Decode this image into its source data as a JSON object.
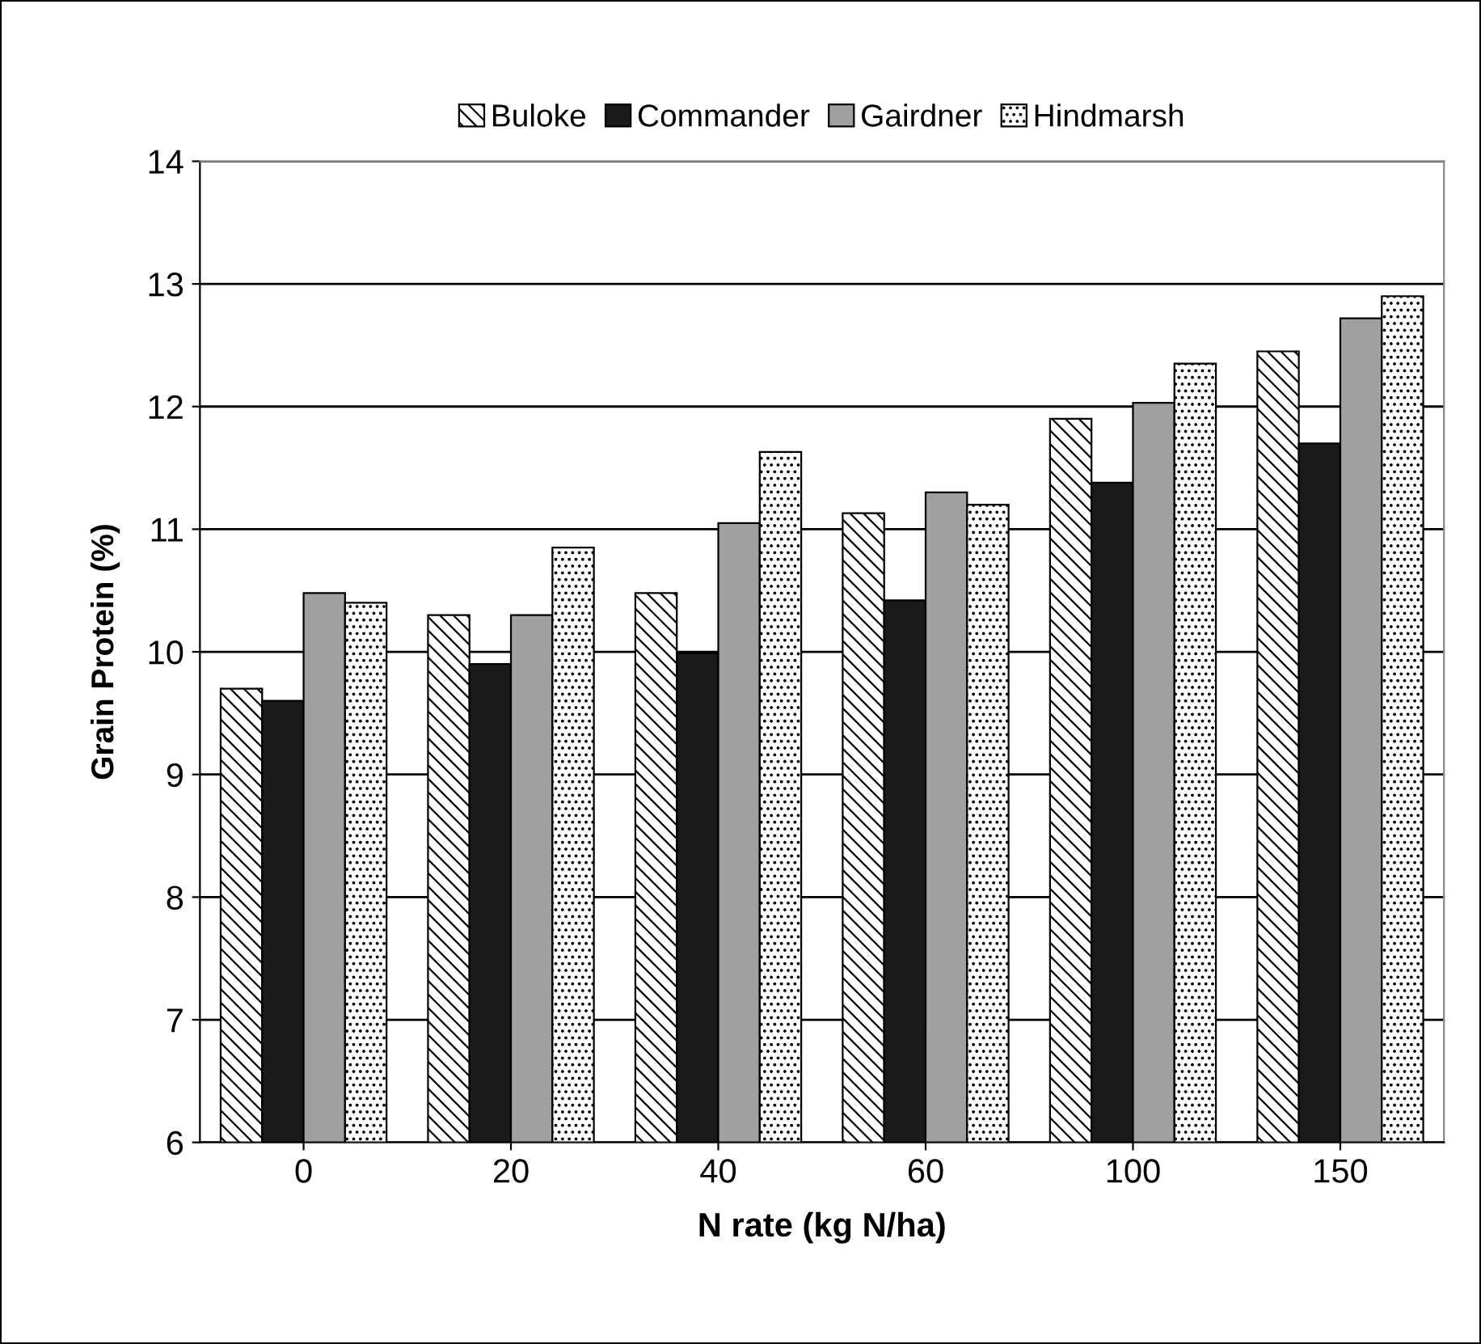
{
  "chart_data": {
    "type": "bar",
    "xlabel": "N rate (kg N/ha)",
    "ylabel": "Grain Protein (%)",
    "categories": [
      "0",
      "20",
      "40",
      "60",
      "100",
      "150"
    ],
    "series": [
      {
        "name": "Buloke",
        "color": "#000000",
        "values": [
          9.7,
          10.3,
          10.48,
          11.13,
          11.9,
          12.45
        ]
      },
      {
        "name": "Commander",
        "color": "#1a1a1a",
        "values": [
          9.6,
          9.9,
          9.99,
          10.42,
          11.38,
          11.7
        ]
      },
      {
        "name": "Gairdner",
        "color": "#a0a0a0",
        "values": [
          10.48,
          10.3,
          11.05,
          11.3,
          12.03,
          12.72
        ]
      },
      {
        "name": "Hindmarsh",
        "color": "#000000",
        "values": [
          10.4,
          10.85,
          11.63,
          11.2,
          12.35,
          12.9
        ]
      }
    ],
    "ylim": [
      6,
      14
    ],
    "yticks": [
      6,
      7,
      8,
      9,
      10,
      11,
      12,
      13,
      14
    ],
    "grid": "y",
    "legend": "top"
  }
}
